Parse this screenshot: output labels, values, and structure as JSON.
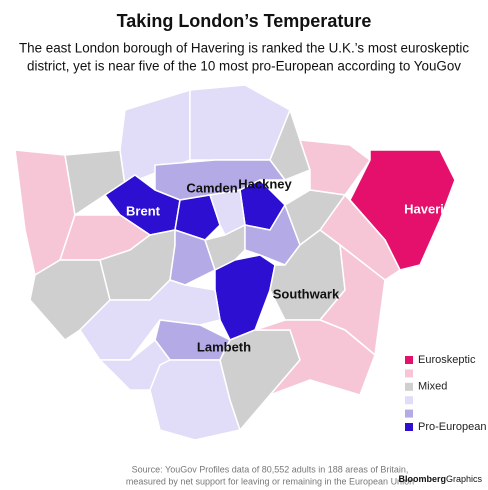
{
  "title": "Taking London’s Temperature",
  "subtitle": [
    "The east London borough of Havering is ranked the U.K.’s most euroskeptic",
    "district, yet is near five of the 10 most pro-European according to YouGov"
  ],
  "map": {
    "labels": [
      {
        "text": "Brent",
        "tone": "light"
      },
      {
        "text": "Camden",
        "tone": "dark"
      },
      {
        "text": "Hackney",
        "tone": "dark"
      },
      {
        "text": "Havering",
        "tone": "light"
      },
      {
        "text": "Southwark",
        "tone": "dark"
      },
      {
        "text": "Lambeth",
        "tone": "dark"
      }
    ]
  },
  "legend": [
    {
      "label": "Euroskeptic",
      "color": "#e5106b"
    },
    {
      "color": "#f6c6d7"
    },
    {
      "label": "Mixed",
      "color": "#cfcfcf"
    },
    {
      "color": "#e1dcf7"
    },
    {
      "color": "#b4aae6"
    },
    {
      "label": "Pro-European",
      "color": "#2c0fd1"
    }
  ],
  "source": [
    "Source: YouGov Profiles data of 80,552 adults in 188 areas of Britain,",
    "measured by net support for leaving or remaining in the European Union"
  ],
  "credit": {
    "brand": "Bloomberg",
    "section": "Graphics"
  }
}
